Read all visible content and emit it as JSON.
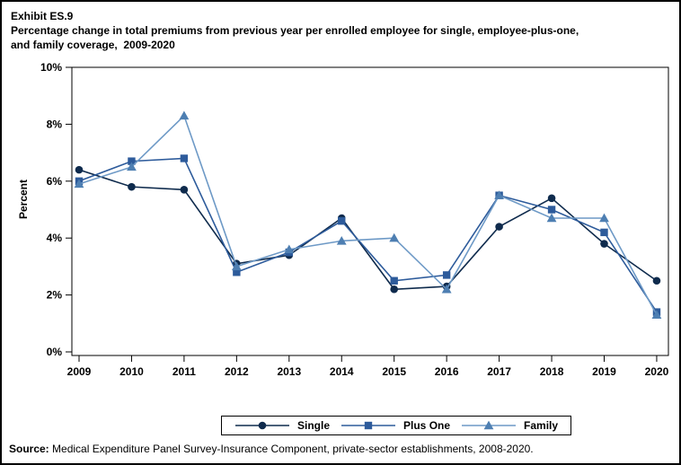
{
  "header": {
    "exhibit": "Exhibit ES.9",
    "title_line1": "Percentage change in total premiums from previous year per enrolled employee for single, employee-plus-one,",
    "title_line2": "and family coverage,  2009-2020"
  },
  "chart": {
    "ylabel": "Percent",
    "y_ticks": [
      0,
      2,
      4,
      6,
      8,
      10
    ],
    "y_tick_suffix": "%"
  },
  "chart_data": {
    "type": "line",
    "title": "Percentage change in total premiums from previous year per enrolled employee for single, employee-plus-one, and family coverage, 2009-2020",
    "xlabel": "",
    "ylabel": "Percent",
    "ylim": [
      0,
      10
    ],
    "grid": false,
    "legend_position": "bottom",
    "x": [
      2009,
      2010,
      2011,
      2012,
      2013,
      2014,
      2015,
      2016,
      2017,
      2018,
      2019,
      2020
    ],
    "series": [
      {
        "name": "Single",
        "marker": "circle",
        "color": "#0F2B4D",
        "values": [
          6.4,
          5.8,
          5.7,
          3.1,
          3.4,
          4.7,
          2.2,
          2.3,
          4.4,
          5.4,
          3.8,
          2.5
        ]
      },
      {
        "name": "Plus One",
        "marker": "square",
        "color": "#2D5B9B",
        "values": [
          6.0,
          6.7,
          6.8,
          2.8,
          3.5,
          4.6,
          2.5,
          2.7,
          5.5,
          5.0,
          4.2,
          1.4
        ]
      },
      {
        "name": "Family",
        "marker": "triangle",
        "color": "#4E7FB2",
        "line_color": "#6D99C6",
        "values": [
          5.9,
          6.5,
          8.3,
          3.0,
          3.6,
          3.9,
          4.0,
          2.2,
          5.5,
          4.7,
          4.7,
          1.3
        ]
      }
    ]
  },
  "source": {
    "label": "Source:",
    "text": " Medical Expenditure Panel Survey-Insurance Component, private-sector establishments, 2008-2020."
  }
}
